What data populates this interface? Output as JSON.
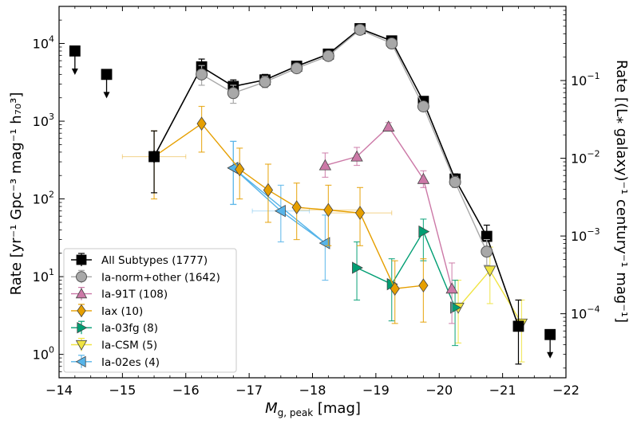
{
  "chart_data": {
    "type": "scatter",
    "title": "",
    "xlabel_prefix": "M",
    "xlabel_sub": "g, peak",
    "xlabel_suffix": " [mag]",
    "ylabel_left": "Rate [yr⁻¹ Gpc⁻³ mag⁻¹ h₇₀³]",
    "ylabel_right": "Rate [(L⁎ galaxy)⁻¹ century⁻¹ mag⁻¹]",
    "xlim": [
      -14,
      -22
    ],
    "ylim": [
      0.5,
      30000
    ],
    "right_ylim": [
      1.5e-05,
      0.9
    ],
    "x_ticks": [
      -14,
      -15,
      -16,
      -17,
      -18,
      -19,
      -20,
      -21,
      -22
    ],
    "x_tick_labels": [
      "−14",
      "−15",
      "−16",
      "−17",
      "−18",
      "−19",
      "−20",
      "−21",
      "−22"
    ],
    "y_ticks": [
      1,
      10,
      100,
      1000,
      10000
    ],
    "y_tick_labels": [
      {
        "base": "10",
        "exp": "0"
      },
      {
        "base": "10",
        "exp": "1"
      },
      {
        "base": "10",
        "exp": "2"
      },
      {
        "base": "10",
        "exp": "3"
      },
      {
        "base": "10",
        "exp": "4"
      }
    ],
    "right_ticks": [
      0.0001,
      0.001,
      0.01,
      0.1
    ],
    "right_tick_labels": [
      {
        "base": "10",
        "exp": "−4"
      },
      {
        "base": "10",
        "exp": "−3"
      },
      {
        "base": "10",
        "exp": "−2"
      },
      {
        "base": "10",
        "exp": "−1"
      }
    ],
    "legend_position": "lower-left",
    "series": [
      {
        "name": "All Subtypes (1777)",
        "color": "#000000",
        "marker": "square",
        "line": true,
        "points": [
          {
            "x": -15.5,
            "y": 350,
            "lo": 120,
            "hi": 750
          },
          {
            "x": -16.25,
            "y": 5000,
            "lo": 3800,
            "hi": 6300
          },
          {
            "x": -16.75,
            "y": 2800,
            "lo": 2100,
            "hi": 3400
          },
          {
            "x": -17.25,
            "y": 3400,
            "lo": 2900,
            "hi": 4000
          },
          {
            "x": -17.75,
            "y": 5100,
            "lo": 4600,
            "hi": 5700
          },
          {
            "x": -18.25,
            "y": 7300,
            "lo": 6700,
            "hi": 7900
          },
          {
            "x": -18.75,
            "y": 15500,
            "lo": 14500,
            "hi": 16500
          },
          {
            "x": -19.25,
            "y": 10800,
            "lo": 10000,
            "hi": 11600
          },
          {
            "x": -19.75,
            "y": 1800,
            "lo": 1600,
            "hi": 2000
          },
          {
            "x": -20.25,
            "y": 180,
            "lo": 150,
            "hi": 210
          },
          {
            "x": -20.75,
            "y": 33,
            "lo": 22,
            "hi": 46
          },
          {
            "x": -21.25,
            "y": 2.3,
            "lo": 0.75,
            "hi": 5
          }
        ],
        "upper_limits": [
          {
            "x": -14.25,
            "y": 8000
          },
          {
            "x": -14.75,
            "y": 4000
          },
          {
            "x": -21.75,
            "y": 1.8
          }
        ]
      },
      {
        "name": "Ia-norm+other (1642)",
        "color": "#a8a8a8",
        "marker": "circle",
        "line": true,
        "points": [
          {
            "x": -16.25,
            "y": 4000,
            "lo": 2900,
            "hi": 5200
          },
          {
            "x": -16.75,
            "y": 2300,
            "lo": 1700,
            "hi": 2900
          },
          {
            "x": -17.25,
            "y": 3200,
            "lo": 2700,
            "hi": 3800
          },
          {
            "x": -17.75,
            "y": 4800,
            "lo": 4400,
            "hi": 5300
          },
          {
            "x": -18.25,
            "y": 6900,
            "lo": 6400,
            "hi": 7500
          },
          {
            "x": -18.75,
            "y": 15000,
            "lo": 14000,
            "hi": 16000
          },
          {
            "x": -19.25,
            "y": 10000,
            "lo": 9300,
            "hi": 10700
          },
          {
            "x": -19.75,
            "y": 1550,
            "lo": 1400,
            "hi": 1720
          },
          {
            "x": -20.25,
            "y": 165,
            "lo": 140,
            "hi": 195
          },
          {
            "x": -20.75,
            "y": 21,
            "lo": 14,
            "hi": 30
          }
        ]
      },
      {
        "name": "Ia-91T (108)",
        "color": "#cc79a7",
        "marker": "triangle-up",
        "line": true,
        "points": [
          {
            "x": -18.2,
            "y": 270,
            "lo": 190,
            "hi": 390
          },
          {
            "x": -18.7,
            "y": 350,
            "lo": 270,
            "hi": 460
          },
          {
            "x": -19.2,
            "y": 850,
            "lo": 750,
            "hi": 960
          },
          {
            "x": -19.75,
            "y": 180,
            "lo": 140,
            "hi": 230
          },
          {
            "x": -20.2,
            "y": 7,
            "lo": 2.5,
            "hi": 15
          }
        ]
      },
      {
        "name": "Iax (10)",
        "color": "#e69f00",
        "marker": "diamond",
        "line": true,
        "points": [
          {
            "x": -15.5,
            "y": 350,
            "lo": 100,
            "hi": 750,
            "xerr": 0.5
          },
          {
            "x": -16.25,
            "y": 930,
            "lo": 400,
            "hi": 1550
          },
          {
            "x": -16.85,
            "y": 240,
            "lo": 100,
            "hi": 450
          },
          {
            "x": -17.3,
            "y": 130,
            "lo": 50,
            "hi": 280
          },
          {
            "x": -17.75,
            "y": 78,
            "lo": 30,
            "hi": 160
          },
          {
            "x": -18.25,
            "y": 72,
            "lo": 25,
            "hi": 150,
            "xerr": 0.5
          },
          {
            "x": -18.75,
            "y": 66,
            "lo": 25,
            "hi": 140,
            "xerr": 0.5
          },
          {
            "x": -19.3,
            "y": 7,
            "lo": 2.5,
            "hi": 16
          },
          {
            "x": -19.75,
            "y": 7.7,
            "lo": 2.6,
            "hi": 17
          }
        ]
      },
      {
        "name": "Ia-03fg (8)",
        "color": "#009e73",
        "marker": "triangle-right",
        "line": true,
        "points": [
          {
            "x": -18.7,
            "y": 13,
            "lo": 5,
            "hi": 28
          },
          {
            "x": -19.25,
            "y": 8,
            "lo": 2.7,
            "hi": 17
          },
          {
            "x": -19.75,
            "y": 38,
            "lo": 16,
            "hi": 55
          },
          {
            "x": -20.25,
            "y": 4,
            "lo": 1.3,
            "hi": 9
          }
        ]
      },
      {
        "name": "Ia-CSM (5)",
        "color": "#f0e442",
        "marker": "triangle-down",
        "line": true,
        "points": [
          {
            "x": -20.3,
            "y": 4,
            "lo": 1.4,
            "hi": 9
          },
          {
            "x": -20.8,
            "y": 12,
            "lo": 4.5,
            "hi": 24
          },
          {
            "x": -21.3,
            "y": 2.5,
            "lo": 0.8,
            "hi": 5
          }
        ]
      },
      {
        "name": "Ia-02es (4)",
        "color": "#56b4e9",
        "marker": "triangle-left",
        "line": true,
        "points": [
          {
            "x": -16.75,
            "y": 250,
            "lo": 85,
            "hi": 550
          },
          {
            "x": -17.5,
            "y": 70,
            "lo": 28,
            "hi": 150,
            "xerr": 0.45
          },
          {
            "x": -18.2,
            "y": 27,
            "lo": 9,
            "hi": 62
          },
          {
            "x": -16.75,
            "y": 250,
            "lo": 85,
            "hi": 550
          }
        ]
      }
    ]
  }
}
